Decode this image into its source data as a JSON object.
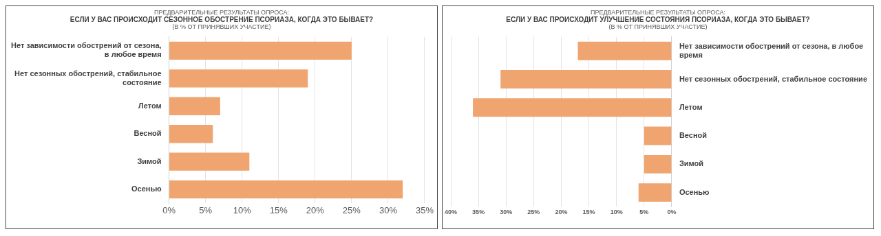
{
  "chart_data": [
    {
      "type": "bar",
      "orientation": "horizontal",
      "annotations": [
        "ПРЕДВАРИТЕЛЬНЫЕ РЕЗУЛЬТАТЫ ОПРОСА:"
      ],
      "title": "ЕСЛИ У ВАС ПРОИСХОДИТ СЕЗОННОЕ ОБОСТРЕНИЕ ПСОРИАЗА, КОГДА ЭТО БЫВАЕТ?",
      "subtitle": "(В % ОТ ПРИНЯВШИХ УЧАСТИЕ)",
      "categories": [
        "Нет зависимости обострений от сезона, в любое время",
        "Нет сезонных обострений, стабильное состояние",
        "Летом",
        "Весной",
        "Зимой",
        "Осенью"
      ],
      "values": [
        25,
        19,
        7,
        6,
        11,
        32
      ],
      "color": "#f0a470",
      "xlim": [
        0,
        35
      ],
      "xticks": [
        {
          "value": 0,
          "label": "0%"
        },
        {
          "value": 5,
          "label": "5%"
        },
        {
          "value": 10,
          "label": "10%"
        },
        {
          "value": 15,
          "label": "15%"
        },
        {
          "value": 20,
          "label": "20%"
        },
        {
          "value": 25,
          "label": "25%"
        },
        {
          "value": 30,
          "label": "30%"
        },
        {
          "value": 35,
          "label": "35%"
        }
      ],
      "grid": "x",
      "legend": false
    },
    {
      "type": "bar",
      "orientation": "horizontal",
      "annotations": [
        "ПРЕДВАРИТЕЛЬНЫЕ РЕЗУЛЬТАТЫ ОПРОСА:"
      ],
      "title": "ЕСЛИ У ВАС ПРОИСХОДИТ УЛУЧШЕНИЕ СОСТОЯНИЯ ПСОРИАЗА, КОГДА ЭТО БЫВАЕТ?",
      "subtitle": "(В % ОТ ПРИНЯВШИХ УЧАСТИЕ)",
      "categories": [
        "Нет зависимости обострений от сезона, в любое время",
        "Нет сезонных обострений, стабильное состояние",
        "Летом",
        "Весной",
        "Зимой",
        "Осенью"
      ],
      "values": [
        17,
        31,
        36,
        5,
        5,
        6
      ],
      "color": "#f0a470",
      "xlim": [
        40,
        0
      ],
      "xticks": [
        {
          "value": 40,
          "label": "40%"
        },
        {
          "value": 35,
          "label": "35%"
        },
        {
          "value": 30,
          "label": "30%"
        },
        {
          "value": 25,
          "label": "25%"
        },
        {
          "value": 20,
          "label": "20%"
        },
        {
          "value": 15,
          "label": "15%"
        },
        {
          "value": 10,
          "label": "10%"
        },
        {
          "value": 5,
          "label": "5%"
        },
        {
          "value": 0,
          "label": "0%"
        }
      ],
      "grid": "x",
      "legend": false
    }
  ]
}
